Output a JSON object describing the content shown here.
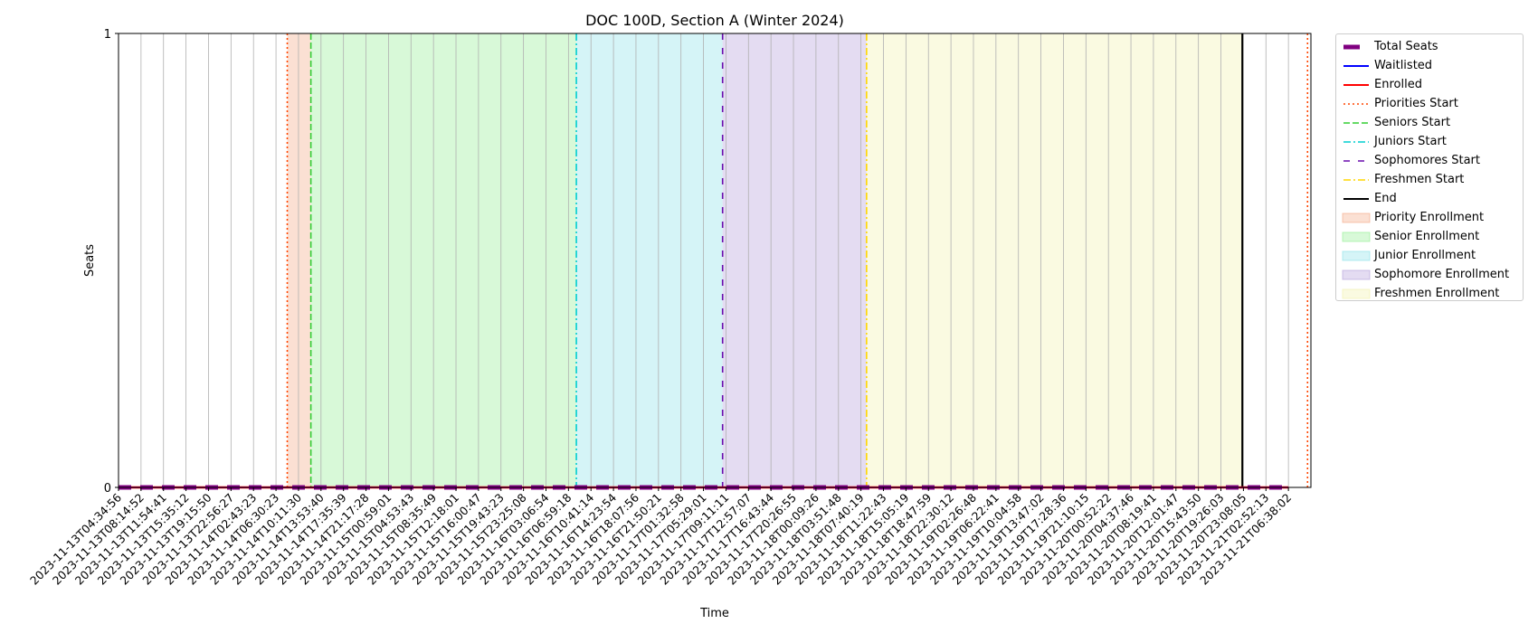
{
  "chart_data": {
    "type": "line",
    "title": "DOC 100D, Section A (Winter 2024)",
    "xlabel": "Time",
    "ylabel": "Seats",
    "ylim": [
      0,
      1
    ],
    "yticks": [
      "0",
      "1"
    ],
    "grid": "vertical",
    "legend_position": "outside-right",
    "x": [
      "2023-11-13T04:34:56",
      "2023-11-13T08:14:52",
      "2023-11-13T11:54:41",
      "2023-11-13T15:35:12",
      "2023-11-13T19:15:50",
      "2023-11-13T22:56:27",
      "2023-11-14T02:43:23",
      "2023-11-14T06:30:23",
      "2023-11-14T10:11:30",
      "2023-11-14T13:53:40",
      "2023-11-14T17:35:39",
      "2023-11-14T21:17:28",
      "2023-11-15T00:59:01",
      "2023-11-15T04:53:43",
      "2023-11-15T08:35:49",
      "2023-11-15T12:18:01",
      "2023-11-15T16:00:47",
      "2023-11-15T19:43:23",
      "2023-11-15T23:25:08",
      "2023-11-16T03:06:54",
      "2023-11-16T06:59:18",
      "2023-11-16T10:41:14",
      "2023-11-16T14:23:54",
      "2023-11-16T18:07:56",
      "2023-11-16T21:50:21",
      "2023-11-17T01:32:58",
      "2023-11-17T05:29:01",
      "2023-11-17T09:11:11",
      "2023-11-17T12:57:07",
      "2023-11-17T16:43:44",
      "2023-11-17T20:26:55",
      "2023-11-18T00:09:26",
      "2023-11-18T03:51:48",
      "2023-11-18T07:40:19",
      "2023-11-18T11:22:43",
      "2023-11-18T15:05:19",
      "2023-11-18T18:47:59",
      "2023-11-18T22:30:12",
      "2023-11-19T02:26:48",
      "2023-11-19T06:22:41",
      "2023-11-19T10:04:58",
      "2023-11-19T13:47:02",
      "2023-11-19T17:28:36",
      "2023-11-19T21:10:15",
      "2023-11-20T00:52:22",
      "2023-11-20T04:37:46",
      "2023-11-20T08:19:41",
      "2023-11-20T12:01:47",
      "2023-11-20T15:43:50",
      "2023-11-20T19:26:03",
      "2023-11-20T23:08:05",
      "2023-11-21T02:52:13",
      "2023-11-21T06:38:02"
    ],
    "series": [
      {
        "name": "Total Seats",
        "color": "#800080",
        "style": "dashed-thick",
        "values": [
          0,
          0,
          0,
          0,
          0,
          0,
          0,
          0,
          0,
          0,
          0,
          0,
          0,
          0,
          0,
          0,
          0,
          0,
          0,
          0,
          0,
          0,
          0,
          0,
          0,
          0,
          0,
          0,
          0,
          0,
          0,
          0,
          0,
          0,
          0,
          0,
          0,
          0,
          0,
          0,
          0,
          0,
          0,
          0,
          0,
          0,
          0,
          0,
          0,
          0,
          0,
          0,
          0
        ]
      },
      {
        "name": "Waitlisted",
        "color": "#0000ff",
        "style": "solid",
        "values": [
          0,
          0,
          0,
          0,
          0,
          0,
          0,
          0,
          0,
          0,
          0,
          0,
          0,
          0,
          0,
          0,
          0,
          0,
          0,
          0,
          0,
          0,
          0,
          0,
          0,
          0,
          0,
          0,
          0,
          0,
          0,
          0,
          0,
          0,
          0,
          0,
          0,
          0,
          0,
          0,
          0,
          0,
          0,
          0,
          0,
          0,
          0,
          0,
          0,
          0,
          0,
          0,
          0
        ]
      },
      {
        "name": "Enrolled",
        "color": "#ff0000",
        "style": "solid-thick",
        "values": [
          0,
          0,
          0,
          0,
          0,
          0,
          0,
          0,
          0,
          0,
          0,
          0,
          0,
          0,
          0,
          0,
          0,
          0,
          0,
          0,
          0,
          0,
          0,
          0,
          0,
          0,
          0,
          0,
          0,
          0,
          0,
          0,
          0,
          0,
          0,
          0,
          0,
          0,
          0,
          0,
          0,
          0,
          0,
          0,
          0,
          0,
          0,
          0,
          0,
          0,
          0,
          0,
          0
        ]
      }
    ],
    "vlines": [
      {
        "name": "Priorities Start",
        "at": 7.5,
        "color": "#ff4500",
        "style": "dotted"
      },
      {
        "name": "Seniors Start",
        "at": 8.55,
        "color": "#32cd32",
        "style": "dashed"
      },
      {
        "name": "Juniors Start",
        "at": 20.35,
        "color": "#00ced1",
        "style": "dashdot"
      },
      {
        "name": "Sophomores Start",
        "at": 26.85,
        "color": "#6a0dad",
        "style": "loosedash"
      },
      {
        "name": "Freshmen Start",
        "at": 33.25,
        "color": "#ffd700",
        "style": "dashdot"
      },
      {
        "name": "End",
        "at": 49.95,
        "color": "#000000",
        "style": "solid"
      },
      {
        "name": "Priorities Start (next)",
        "at": 52.85,
        "color": "#ff4500",
        "style": "dotted",
        "in_legend": false
      }
    ],
    "spans": [
      {
        "name": "Priority Enrollment",
        "from": 7.5,
        "to": 8.55,
        "color": "#f4a582"
      },
      {
        "name": "Senior Enrollment",
        "from": 8.55,
        "to": 20.35,
        "color": "#90ee90"
      },
      {
        "name": "Junior Enrollment",
        "from": 20.35,
        "to": 26.85,
        "color": "#87dfe7"
      },
      {
        "name": "Sophomore Enrollment",
        "from": 26.85,
        "to": 33.25,
        "color": "#b19cd9"
      },
      {
        "name": "Freshmen Enrollment",
        "from": 33.25,
        "to": 49.95,
        "color": "#f0f0a8"
      }
    ],
    "legend": [
      "Total Seats",
      "Waitlisted",
      "Enrolled",
      "Priorities Start",
      "Seniors Start",
      "Juniors Start",
      "Sophomores Start",
      "Freshmen Start",
      "End",
      "Priority Enrollment",
      "Senior Enrollment",
      "Junior Enrollment",
      "Sophomore Enrollment",
      "Freshmen Enrollment"
    ]
  }
}
